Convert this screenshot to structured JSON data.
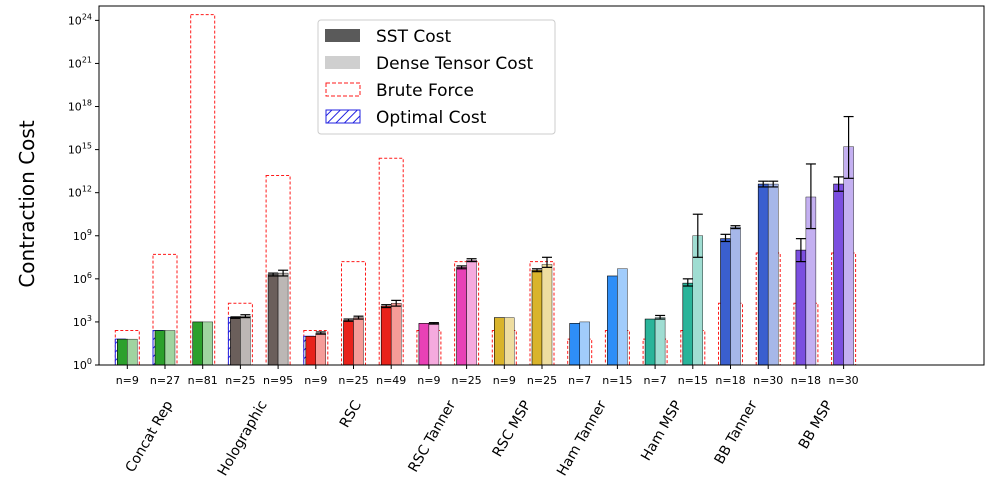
{
  "chart_data": {
    "type": "bar",
    "ylabel": "Contraction Cost",
    "yscale": "log10",
    "ylim_exp": [
      0,
      25
    ],
    "yticks": [
      {
        "exp": 0,
        "base": "10",
        "sup": "0"
      },
      {
        "exp": 3,
        "base": "10",
        "sup": "3"
      },
      {
        "exp": 6,
        "base": "10",
        "sup": "6"
      },
      {
        "exp": 9,
        "base": "10",
        "sup": "9"
      },
      {
        "exp": 12,
        "base": "10",
        "sup": "12"
      },
      {
        "exp": 15,
        "base": "10",
        "sup": "15"
      },
      {
        "exp": 18,
        "base": "10",
        "sup": "18"
      },
      {
        "exp": 21,
        "base": "10",
        "sup": "21"
      },
      {
        "exp": 24,
        "base": "10",
        "sup": "24"
      }
    ],
    "legend": {
      "position": "top-center",
      "entries": [
        {
          "label": "SST Cost",
          "style": "solid-dark"
        },
        {
          "label": "Dense Tensor Cost",
          "style": "solid-light"
        },
        {
          "label": "Brute Force",
          "style": "dashed-red"
        },
        {
          "label": "Optimal Cost",
          "style": "hatched-blue"
        }
      ]
    },
    "groups": [
      {
        "label": "Concat Rep",
        "color": "#2ca02c",
        "members": [
          {
            "n": "n=9",
            "sst": 1.8,
            "dense": 1.8,
            "brute": 2.4,
            "optimal": 1.8
          },
          {
            "n": "n=27",
            "sst": 2.4,
            "dense": 2.4,
            "brute": 7.7,
            "optimal": 2.4
          },
          {
            "n": "n=81",
            "sst": 3.0,
            "dense": 3.0,
            "brute": 24.4
          }
        ]
      },
      {
        "label": "Holographic",
        "color": "#6b5f5b",
        "members": [
          {
            "n": "n=25",
            "sst": 3.3,
            "dense": 3.4,
            "brute": 4.3,
            "optimal": 3.3,
            "sst_err": [
              3.25,
              3.35
            ],
            "dense_err": [
              3.3,
              3.5
            ]
          },
          {
            "n": "n=95",
            "sst": 6.3,
            "dense": 6.4,
            "brute": 13.2,
            "sst_err": [
              6.2,
              6.4
            ],
            "dense_err": [
              6.2,
              6.6
            ]
          }
        ]
      },
      {
        "label": "RSC",
        "color": "#e8221b",
        "members": [
          {
            "n": "n=9",
            "sst": 2.0,
            "dense": 2.2,
            "brute": 2.4,
            "optimal": 2.0,
            "dense_err": [
              2.15,
              2.3
            ]
          },
          {
            "n": "n=25",
            "sst": 3.1,
            "dense": 3.3,
            "brute": 7.2,
            "sst_err": [
              3.05,
              3.2
            ],
            "dense_err": [
              3.2,
              3.4
            ]
          },
          {
            "n": "n=49",
            "sst": 4.1,
            "dense": 4.3,
            "brute": 14.4,
            "sst_err": [
              4.0,
              4.2
            ],
            "dense_err": [
              4.1,
              4.5
            ]
          }
        ]
      },
      {
        "label": "RSC Tanner",
        "color": "#e841b6",
        "members": [
          {
            "n": "n=9",
            "sst": 2.9,
            "dense": 2.9,
            "brute": 2.4,
            "dense_err": [
              2.85,
              2.95
            ]
          },
          {
            "n": "n=25",
            "sst": 6.8,
            "dense": 7.3,
            "brute": 7.2,
            "sst_err": [
              6.7,
              6.9
            ],
            "dense_err": [
              7.2,
              7.4
            ]
          }
        ]
      },
      {
        "label": "RSC MSP",
        "color": "#d9b42b",
        "members": [
          {
            "n": "n=9",
            "sst": 3.3,
            "dense": 3.3,
            "brute": 2.4
          },
          {
            "n": "n=25",
            "sst": 6.6,
            "dense": 7.0,
            "brute": 7.2,
            "sst_err": [
              6.5,
              6.7
            ],
            "dense_err": [
              6.8,
              7.5
            ]
          }
        ]
      },
      {
        "label": "Ham Tanner",
        "color": "#2e8ef7",
        "members": [
          {
            "n": "n=7",
            "sst": 2.9,
            "dense": 3.0,
            "brute": 1.8
          },
          {
            "n": "n=15",
            "sst": 6.2,
            "dense": 6.7,
            "brute": 2.4
          }
        ]
      },
      {
        "label": "Ham MSP",
        "color": "#2ab49a",
        "members": [
          {
            "n": "n=7",
            "sst": 3.2,
            "dense": 3.3,
            "brute": 1.8,
            "dense_err": [
              3.2,
              3.45
            ]
          },
          {
            "n": "n=15",
            "sst": 5.7,
            "dense": 9.0,
            "brute": 2.4,
            "sst_err": [
              5.5,
              6.0
            ],
            "dense_err": [
              7.5,
              10.5
            ]
          }
        ]
      },
      {
        "label": "BB Tanner",
        "color": "#3a5fcf",
        "members": [
          {
            "n": "n=18",
            "sst": 8.8,
            "dense": 9.6,
            "brute": 4.3,
            "sst_err": [
              8.6,
              9.1
            ],
            "dense_err": [
              9.5,
              9.7
            ]
          },
          {
            "n": "n=30",
            "sst": 12.6,
            "dense": 12.6,
            "brute": 7.8,
            "sst_err": [
              12.4,
              12.8
            ],
            "dense_err": [
              12.4,
              12.8
            ]
          }
        ]
      },
      {
        "label": "BB MSP",
        "color": "#7b4fe0",
        "members": [
          {
            "n": "n=18",
            "sst": 8.0,
            "dense": 11.7,
            "brute": 4.3,
            "sst_err": [
              7.2,
              8.8
            ],
            "dense_err": [
              9.5,
              14.0
            ]
          },
          {
            "n": "n=30",
            "sst": 12.6,
            "dense": 15.2,
            "brute": 7.8,
            "sst_err": [
              12.1,
              13.1
            ],
            "dense_err": [
              13.0,
              17.3
            ]
          }
        ]
      }
    ]
  }
}
